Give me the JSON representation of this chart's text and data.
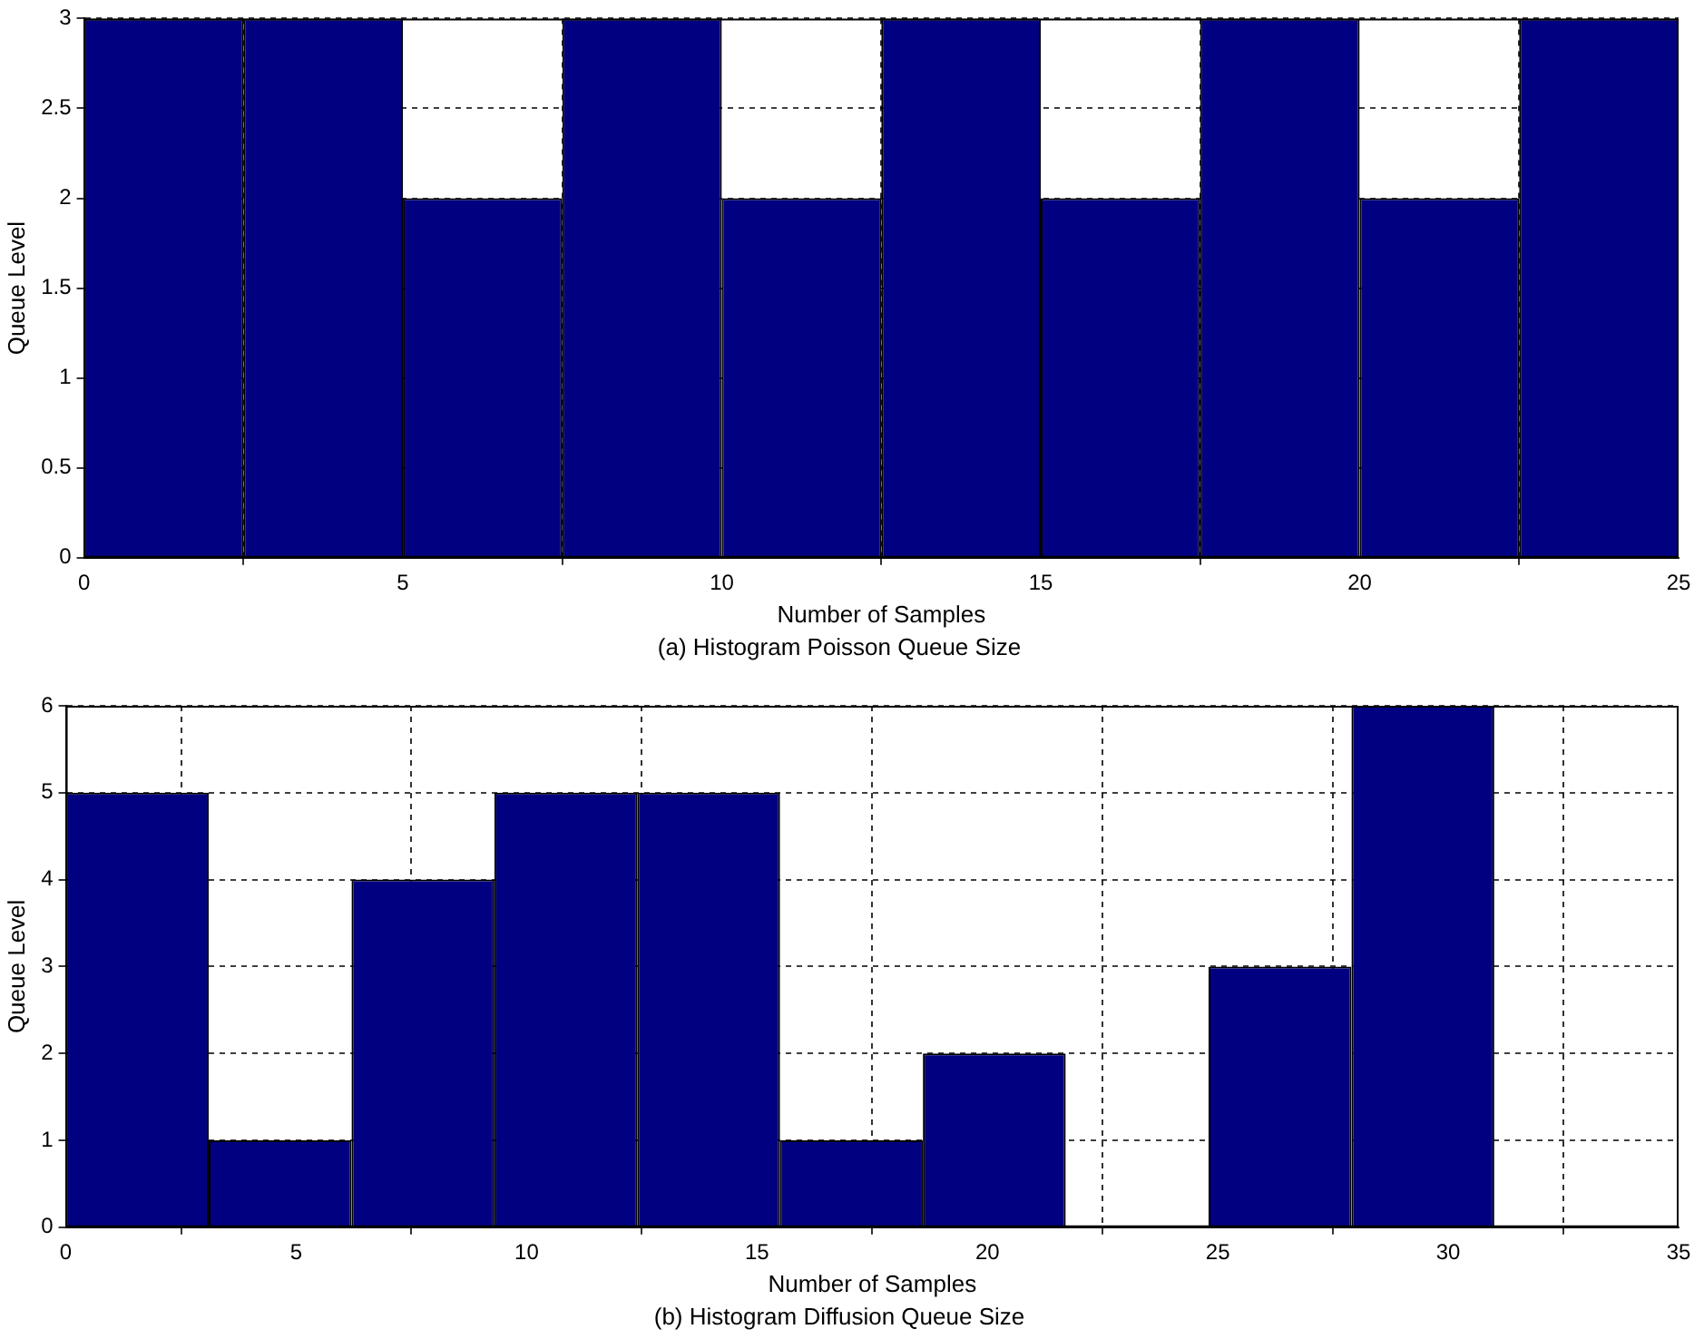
{
  "chart_data": [
    {
      "type": "histogram",
      "title": "(a) Histogram Poisson Queue Size",
      "xlabel": "Number of Samples",
      "ylabel": "Queue Level",
      "color": "#000080",
      "bins": [
        0,
        2.5,
        5,
        7.5,
        10,
        12.5,
        15,
        17.5,
        20,
        22.5,
        25
      ],
      "values": [
        3,
        3,
        2,
        3,
        2,
        3,
        2,
        3,
        2,
        3
      ],
      "xlim": [
        0,
        25
      ],
      "xticks": [
        0,
        5,
        10,
        15,
        20,
        25
      ],
      "ylim": [
        0,
        3
      ],
      "yticks": [
        0,
        0.5,
        1,
        1.5,
        2,
        2.5,
        3
      ],
      "grid": true
    },
    {
      "type": "histogram",
      "title": "(b) Histogram Diffusion Queue Size",
      "xlabel": "Number of Samples",
      "ylabel": "Queue Level",
      "color": "#000080",
      "bins": [
        0,
        3.1,
        6.2,
        9.3,
        12.4,
        15.5,
        18.6,
        21.7,
        24.8,
        27.9,
        31
      ],
      "values": [
        5,
        1,
        4,
        5,
        5,
        1,
        2,
        0,
        3,
        6
      ],
      "xlim": [
        0,
        35
      ],
      "xticks": [
        0,
        5,
        10,
        15,
        20,
        25,
        30,
        35
      ],
      "ylim": [
        0,
        6
      ],
      "yticks": [
        0,
        1,
        2,
        3,
        4,
        5,
        6
      ],
      "grid": true
    }
  ]
}
